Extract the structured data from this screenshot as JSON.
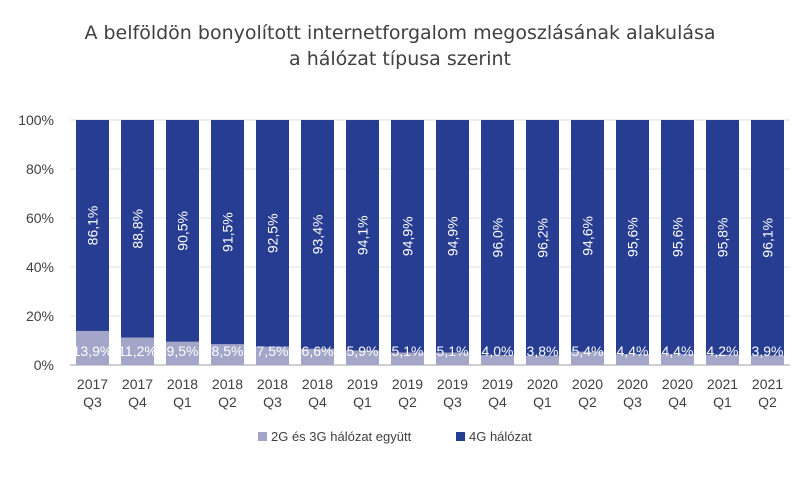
{
  "chart_data": {
    "type": "bar",
    "stacked": true,
    "title": [
      "A belföldön bonyolított internetforgalom megoszlásának alakulása",
      "a hálózat típusa szerint"
    ],
    "categories": [
      [
        "2017",
        "Q3"
      ],
      [
        "2017",
        "Q4"
      ],
      [
        "2018",
        "Q1"
      ],
      [
        "2018",
        "Q2"
      ],
      [
        "2018",
        "Q3"
      ],
      [
        "2018",
        "Q4"
      ],
      [
        "2019",
        "Q1"
      ],
      [
        "2019",
        "Q2"
      ],
      [
        "2019",
        "Q3"
      ],
      [
        "2019",
        "Q4"
      ],
      [
        "2020",
        "Q1"
      ],
      [
        "2020",
        "Q2"
      ],
      [
        "2020",
        "Q3"
      ],
      [
        "2020",
        "Q4"
      ],
      [
        "2021",
        "Q1"
      ],
      [
        "2021",
        "Q2"
      ]
    ],
    "series": [
      {
        "name": "2G és 3G hálózat együtt",
        "color": "#a3a6c9",
        "values": [
          13.9,
          11.2,
          9.5,
          8.5,
          7.5,
          6.6,
          5.9,
          5.1,
          5.1,
          4.0,
          3.8,
          5.4,
          4.4,
          4.4,
          4.2,
          3.9
        ]
      },
      {
        "name": "4G hálózat",
        "color": "#263d91",
        "values": [
          86.1,
          88.8,
          90.5,
          91.5,
          92.5,
          93.4,
          94.1,
          94.9,
          94.9,
          96.0,
          96.2,
          94.6,
          95.6,
          95.6,
          95.8,
          96.1
        ]
      }
    ],
    "yticks": [
      "0%",
      "20%",
      "40%",
      "60%",
      "80%",
      "100%"
    ],
    "ylim": [
      0,
      100
    ],
    "legend_position": "bottom"
  }
}
